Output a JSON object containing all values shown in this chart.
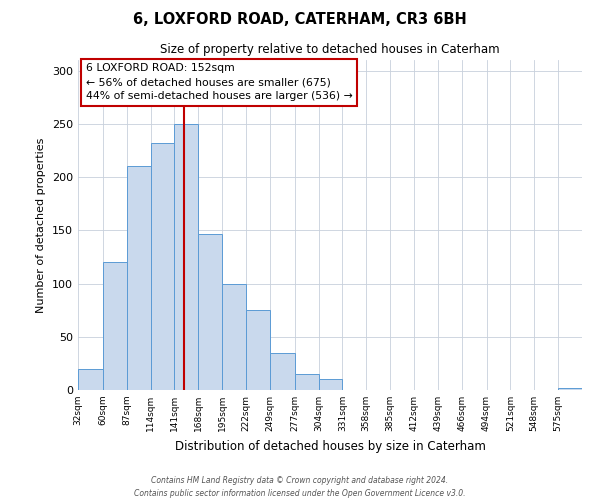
{
  "title1": "6, LOXFORD ROAD, CATERHAM, CR3 6BH",
  "title2": "Size of property relative to detached houses in Caterham",
  "xlabel": "Distribution of detached houses by size in Caterham",
  "ylabel": "Number of detached properties",
  "bin_labels": [
    "32sqm",
    "60sqm",
    "87sqm",
    "114sqm",
    "141sqm",
    "168sqm",
    "195sqm",
    "222sqm",
    "249sqm",
    "277sqm",
    "304sqm",
    "331sqm",
    "358sqm",
    "385sqm",
    "412sqm",
    "439sqm",
    "466sqm",
    "494sqm",
    "521sqm",
    "548sqm",
    "575sqm"
  ],
  "bin_edges": [
    32,
    60,
    87,
    114,
    141,
    168,
    195,
    222,
    249,
    277,
    304,
    331,
    358,
    385,
    412,
    439,
    466,
    494,
    521,
    548,
    575
  ],
  "bar_heights": [
    20,
    120,
    210,
    232,
    250,
    147,
    100,
    75,
    35,
    15,
    10,
    0,
    0,
    0,
    0,
    0,
    0,
    0,
    0,
    0,
    2
  ],
  "bar_color": "#c9d9ed",
  "bar_edge_color": "#5b9bd5",
  "vline_x": 152,
  "vline_color": "#c00000",
  "annotation_title": "6 LOXFORD ROAD: 152sqm",
  "annotation_line1": "← 56% of detached houses are smaller (675)",
  "annotation_line2": "44% of semi-detached houses are larger (536) →",
  "annotation_box_color": "#ffffff",
  "annotation_box_edge": "#c00000",
  "ylim": [
    0,
    310
  ],
  "yticks": [
    0,
    50,
    100,
    150,
    200,
    250,
    300
  ],
  "footer1": "Contains HM Land Registry data © Crown copyright and database right 2024.",
  "footer2": "Contains public sector information licensed under the Open Government Licence v3.0.",
  "bg_color": "#ffffff",
  "grid_color": "#c8d0dc"
}
